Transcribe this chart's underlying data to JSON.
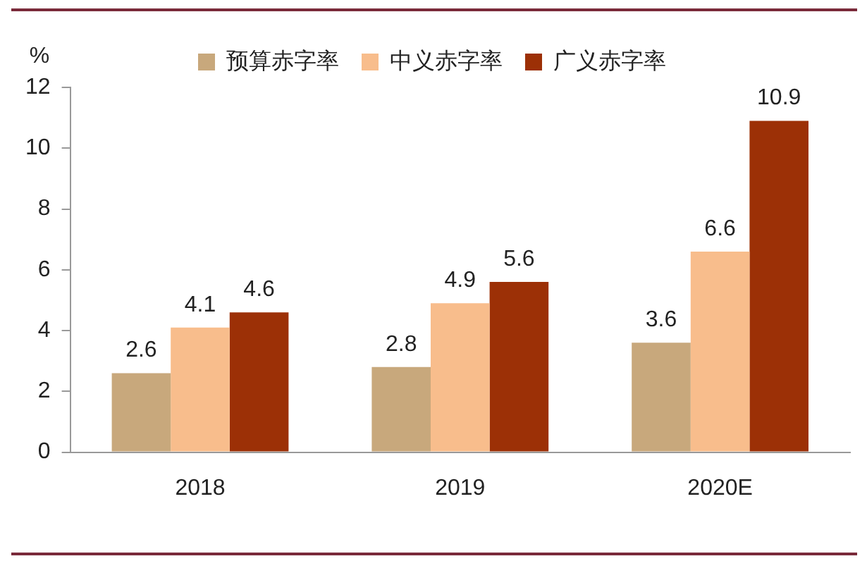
{
  "chart_data": {
    "type": "bar",
    "ylabel": "%",
    "categories": [
      "2018",
      "2019",
      "2020E"
    ],
    "series": [
      {
        "name": "预算赤字率",
        "color": "#c8a87c",
        "values": [
          2.6,
          2.8,
          3.6
        ]
      },
      {
        "name": "中义赤字率",
        "color": "#f8bd8c",
        "values": [
          4.1,
          4.9,
          6.6
        ]
      },
      {
        "name": "广义赤字率",
        "color": "#9c3006",
        "values": [
          4.6,
          5.6,
          10.9
        ]
      }
    ],
    "ylim": [
      0,
      12
    ],
    "yticks": [
      0,
      2,
      4,
      6,
      8,
      10,
      12
    ],
    "grid": false,
    "legend": "top",
    "data_labels": true
  }
}
